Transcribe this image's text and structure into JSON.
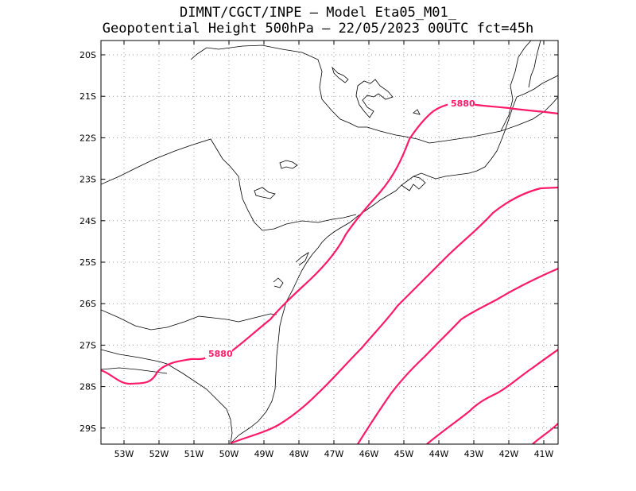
{
  "title": {
    "line1": "DIMNT/CGCT/INPE  –  Model Eta05_M01_",
    "line2": "Geopotential Height 500hPa  –  22/05/2023 00UTC fct=45h"
  },
  "colors": {
    "contour": "#ff1a66",
    "coast": "#000000",
    "grid": "#999999"
  },
  "lon_ticks": [
    "53W",
    "52W",
    "51W",
    "50W",
    "49W",
    "48W",
    "47W",
    "46W",
    "45W",
    "44W",
    "43W",
    "42W",
    "41W"
  ],
  "lat_ticks": [
    "20S",
    "21S",
    "22S",
    "23S",
    "24S",
    "25S",
    "26S",
    "27S",
    "28S",
    "29S"
  ],
  "contour_labels": [
    "5880",
    "5880"
  ]
}
